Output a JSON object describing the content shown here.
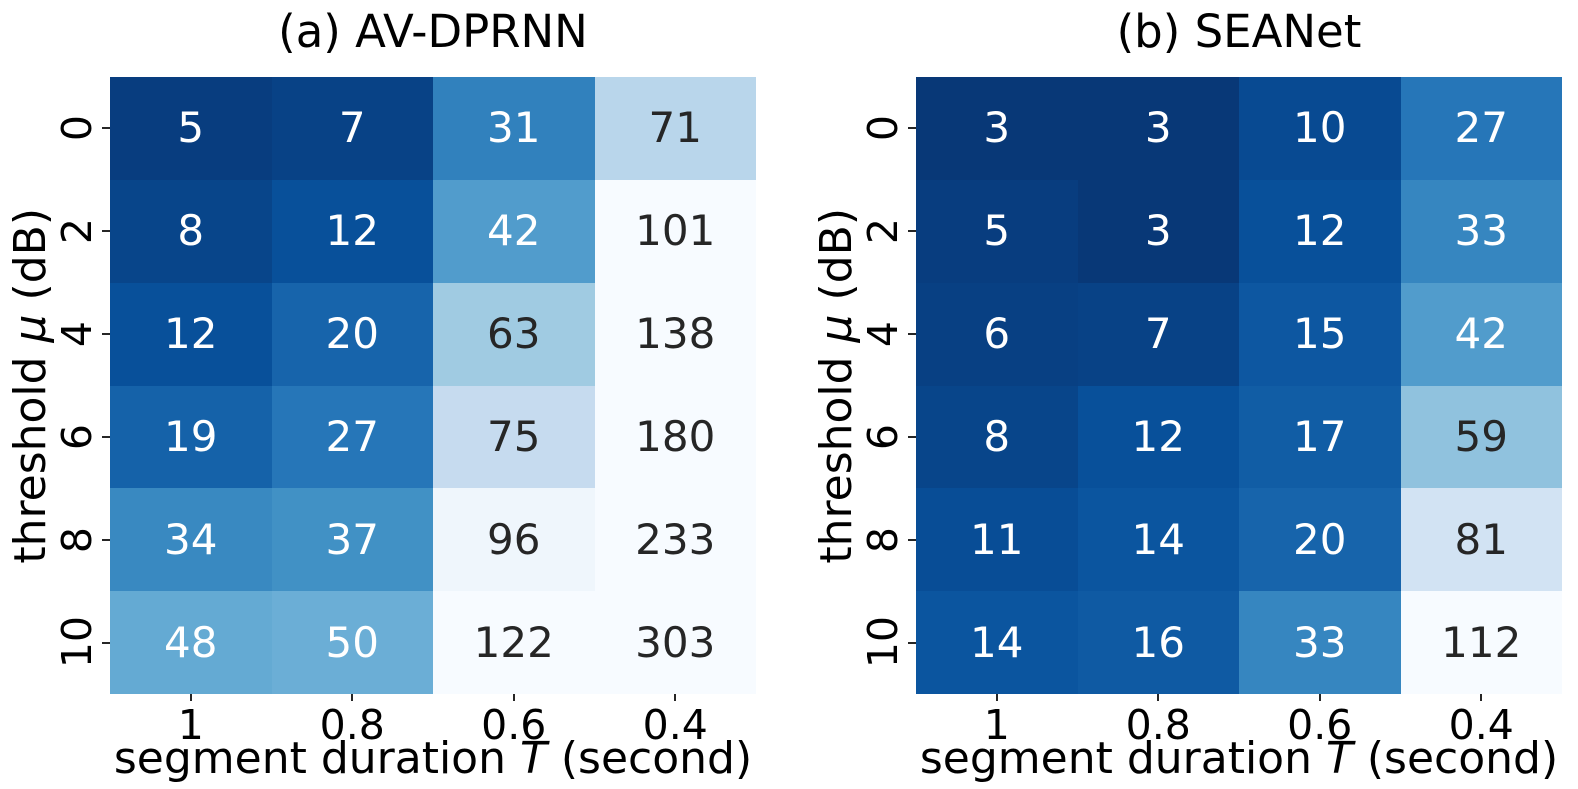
{
  "figure": {
    "background": "#ffffff",
    "axis_text_color": "#000000",
    "annotation_text_light": "#ffffff",
    "annotation_text_dark": "#262626",
    "tick_mark_color": "#262626"
  },
  "chart_data": [
    {
      "type": "heatmap",
      "title": "(a) AV-DPRNN",
      "xlabel": {
        "prefix": "segment duration ",
        "var": "T",
        "suffix": " (second)"
      },
      "ylabel": {
        "prefix": "threshold ",
        "var": "μ",
        "suffix": " (dB)"
      },
      "x_tick_labels": [
        "1",
        "0.8",
        "0.6",
        "0.4"
      ],
      "y_tick_labels": [
        "0",
        "2",
        "4",
        "6",
        "8",
        "10"
      ],
      "values": [
        [
          5,
          7,
          31,
          71
        ],
        [
          8,
          12,
          42,
          101
        ],
        [
          12,
          20,
          63,
          138
        ],
        [
          19,
          27,
          75,
          180
        ],
        [
          34,
          37,
          96,
          233
        ],
        [
          48,
          50,
          122,
          303
        ]
      ],
      "colormap": {
        "name": "Blues_r",
        "vmin": 0,
        "vmax": 100,
        "anchors_light_to_dark": [
          "#f7fbff",
          "#deebf7",
          "#c6dbef",
          "#9ecae1",
          "#6baed6",
          "#4292c6",
          "#2171b5",
          "#08519c",
          "#08306b"
        ]
      },
      "grid": "off",
      "legend": "none"
    },
    {
      "type": "heatmap",
      "title": "(b) SEANet",
      "xlabel": {
        "prefix": "segment duration ",
        "var": "T",
        "suffix": " (second)"
      },
      "ylabel": {
        "prefix": "threshold ",
        "var": "μ",
        "suffix": " (dB)"
      },
      "x_tick_labels": [
        "1",
        "0.8",
        "0.6",
        "0.4"
      ],
      "y_tick_labels": [
        "0",
        "2",
        "4",
        "6",
        "8",
        "10"
      ],
      "values": [
        [
          3,
          3,
          10,
          27
        ],
        [
          5,
          3,
          12,
          33
        ],
        [
          6,
          7,
          15,
          42
        ],
        [
          8,
          12,
          17,
          59
        ],
        [
          11,
          14,
          20,
          81
        ],
        [
          14,
          16,
          33,
          112
        ]
      ],
      "colormap": {
        "name": "Blues_r",
        "vmin": 0,
        "vmax": 100,
        "anchors_light_to_dark": [
          "#f7fbff",
          "#deebf7",
          "#c6dbef",
          "#9ecae1",
          "#6baed6",
          "#4292c6",
          "#2171b5",
          "#08519c",
          "#08306b"
        ]
      },
      "grid": "off",
      "legend": "none"
    }
  ]
}
